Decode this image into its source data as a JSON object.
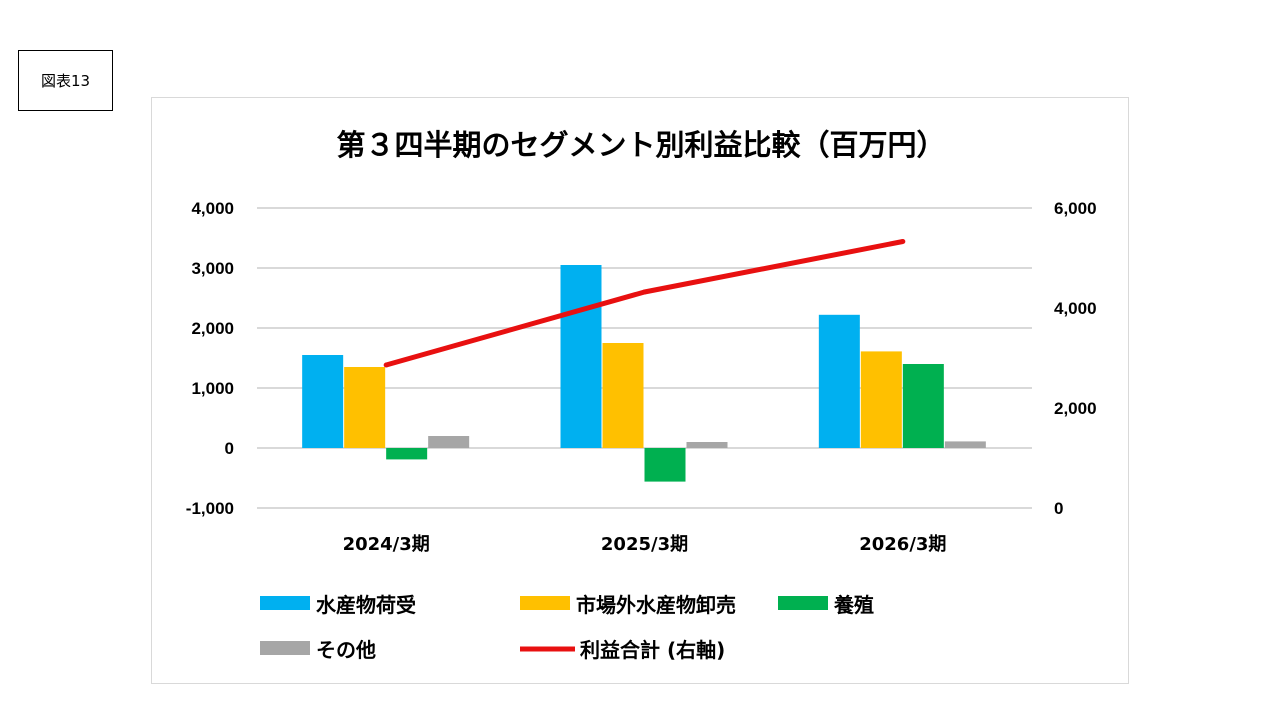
{
  "figure_label": "図表13",
  "colors": {
    "suisanbutsu_niuke": "#00B0F0",
    "shijougai": "#FFC000",
    "youshoku": "#00B050",
    "sonota": "#A6A6A6",
    "rieki_goukei": "#E81010",
    "grid": "#d9d9d9"
  },
  "chart_data": {
    "type": "bar",
    "title": "第３四半期のセグメント別利益比較（百万円）",
    "categories": [
      "2024/3期",
      "2025/3期",
      "2026/3期"
    ],
    "left_axis": {
      "min": -1000,
      "max": 4000,
      "step": 1000,
      "ticks": [
        "4,000",
        "3,000",
        "2,000",
        "1,000",
        "0",
        "-1,000"
      ]
    },
    "right_axis": {
      "min": 0,
      "max": 6000,
      "step": 2000,
      "ticks": [
        "6,000",
        "4,000",
        "2,000",
        "0"
      ]
    },
    "grid": true,
    "legend_position": "bottom",
    "series": [
      {
        "name": "水産物荷受",
        "type": "bar",
        "axis": "left",
        "values": [
          1550,
          3050,
          2220
        ]
      },
      {
        "name": "市場外水産物卸売",
        "type": "bar",
        "axis": "left",
        "values": [
          1350,
          1750,
          1610
        ]
      },
      {
        "name": "養殖",
        "type": "bar",
        "axis": "left",
        "values": [
          -190,
          -560,
          1400
        ]
      },
      {
        "name": "その他",
        "type": "bar",
        "axis": "left",
        "values": [
          200,
          100,
          110
        ]
      },
      {
        "name": "利益合計 (右軸)",
        "type": "line",
        "axis": "right",
        "values": [
          2860,
          4320,
          5330
        ]
      }
    ]
  }
}
